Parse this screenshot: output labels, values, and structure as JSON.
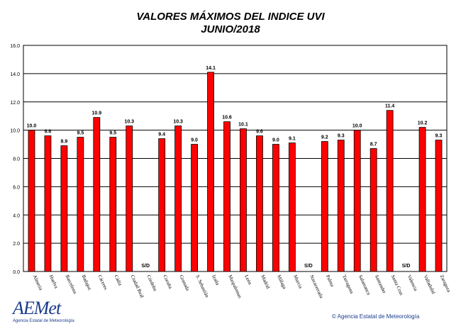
{
  "chart_data": {
    "type": "bar",
    "title": "VALORES MÁXIMOS DEL INDICE UVI",
    "subtitle": "JUNIO/2018",
    "ylim": [
      0,
      16
    ],
    "yticks": [
      "0.0",
      "2.0",
      "4.0",
      "6.0",
      "8.0",
      "10.0",
      "12.0",
      "14.0",
      "16.0"
    ],
    "grid": true,
    "bar_color": "#ff0000",
    "categories": [
      "Almería",
      "Huelva",
      "Barcelona",
      "Badajoz",
      "Cáceres",
      "Cádiz",
      "Ciudad Real",
      "Córdoba",
      "Coruña",
      "Granada",
      "S. Sebastián",
      "Izaña",
      "Maspalomas",
      "León",
      "Madrid",
      "Málaga",
      "Murcia",
      "Navacerrada",
      "Palma",
      "Tarragona",
      "Salamanca",
      "Santander",
      "Santa Cruz",
      "Valencia",
      "Valladolid",
      "Zaragoza"
    ],
    "values": [
      10.0,
      9.6,
      8.9,
      9.5,
      10.9,
      9.5,
      10.3,
      null,
      9.4,
      10.3,
      9.0,
      14.1,
      10.6,
      10.1,
      9.6,
      9.0,
      9.1,
      null,
      9.2,
      9.3,
      10.0,
      8.7,
      11.4,
      null,
      10.2,
      9.3
    ],
    "data_labels": [
      "10.0",
      "9.6",
      "8.9",
      "9.5",
      "10.9",
      "9.5",
      "10.3",
      "S/D",
      "9.4",
      "10.3",
      "9.0",
      "14.1",
      "10.6",
      "10.1",
      "9.6",
      "9.0",
      "9.1",
      "S/D",
      "9.2",
      "9.3",
      "10.0",
      "8.7",
      "11.4",
      "S/D",
      "10.2",
      "9.3"
    ]
  },
  "footer": {
    "logo_text": "AEMet",
    "logo_subtitle": "Agencia Estatal de Meteorología",
    "copyright": "© Agencia Estatal de Meteorología"
  }
}
